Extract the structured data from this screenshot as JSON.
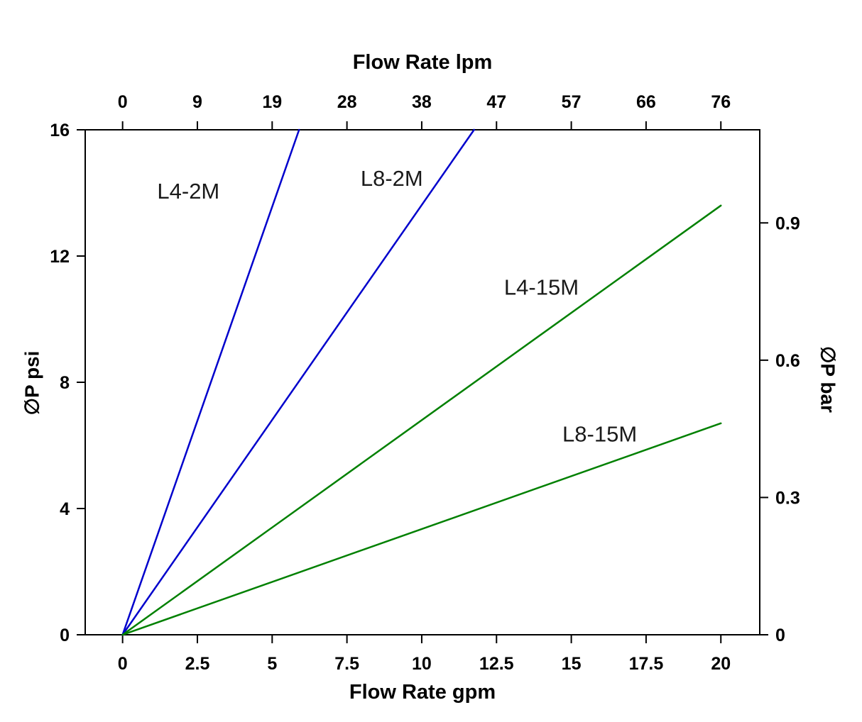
{
  "page": {
    "background": "#ffffff"
  },
  "chart_data": {
    "type": "line",
    "title_top_axis": "Flow Rate lpm",
    "xlabel_bottom": "Flow Rate gpm",
    "ylabel_left": "∅P psi",
    "ylabel_right": "∅P bar",
    "xlim": [
      -1.25,
      21.3
    ],
    "ylim": [
      0,
      16
    ],
    "grid": false,
    "legend": "inline-annotations",
    "axis_color": "#000000",
    "text_color": "#000000",
    "x_ticks_bottom": {
      "unit": "gpm",
      "positions": [
        0,
        2.5,
        5,
        7.5,
        10,
        12.5,
        15,
        17.5,
        20
      ],
      "labels": [
        "0",
        "2.5",
        "5",
        "7.5",
        "10",
        "12.5",
        "15",
        "17.5",
        "20"
      ]
    },
    "x_ticks_top": {
      "unit": "lpm",
      "positions": [
        0,
        2.5,
        5,
        7.5,
        10,
        12.5,
        15,
        17.5,
        20
      ],
      "labels": [
        "0",
        "9",
        "19",
        "28",
        "38",
        "47",
        "57",
        "66",
        "76"
      ]
    },
    "y_ticks_left": {
      "unit": "psi",
      "positions": [
        0,
        4,
        8,
        12,
        16
      ],
      "labels": [
        "0",
        "4",
        "8",
        "12",
        "16"
      ]
    },
    "y_ticks_right": {
      "unit": "bar",
      "positions": [
        0,
        4.35,
        8.7,
        13.05
      ],
      "labels": [
        "0",
        "0.3",
        "0.6",
        "0.9"
      ]
    },
    "series": [
      {
        "name": "L4-2M",
        "color": "#0000cc",
        "x": [
          0,
          5.9
        ],
        "y": [
          0,
          16
        ]
      },
      {
        "name": "L8-2M",
        "color": "#0000cc",
        "x": [
          0,
          11.75
        ],
        "y": [
          0,
          16
        ]
      },
      {
        "name": "L4-15M",
        "color": "#008000",
        "x": [
          0,
          20
        ],
        "y": [
          0,
          13.6
        ]
      },
      {
        "name": "L8-15M",
        "color": "#008000",
        "x": [
          0,
          20
        ],
        "y": [
          0,
          6.7
        ]
      }
    ],
    "annotations": [
      {
        "text": "L4-2M",
        "x": 2.2,
        "y": 14.05
      },
      {
        "text": "L8-2M",
        "x": 9.0,
        "y": 14.45
      },
      {
        "text": "L4-15M",
        "x": 14.0,
        "y": 11.0
      },
      {
        "text": "L8-15M",
        "x": 15.95,
        "y": 6.35
      }
    ]
  }
}
